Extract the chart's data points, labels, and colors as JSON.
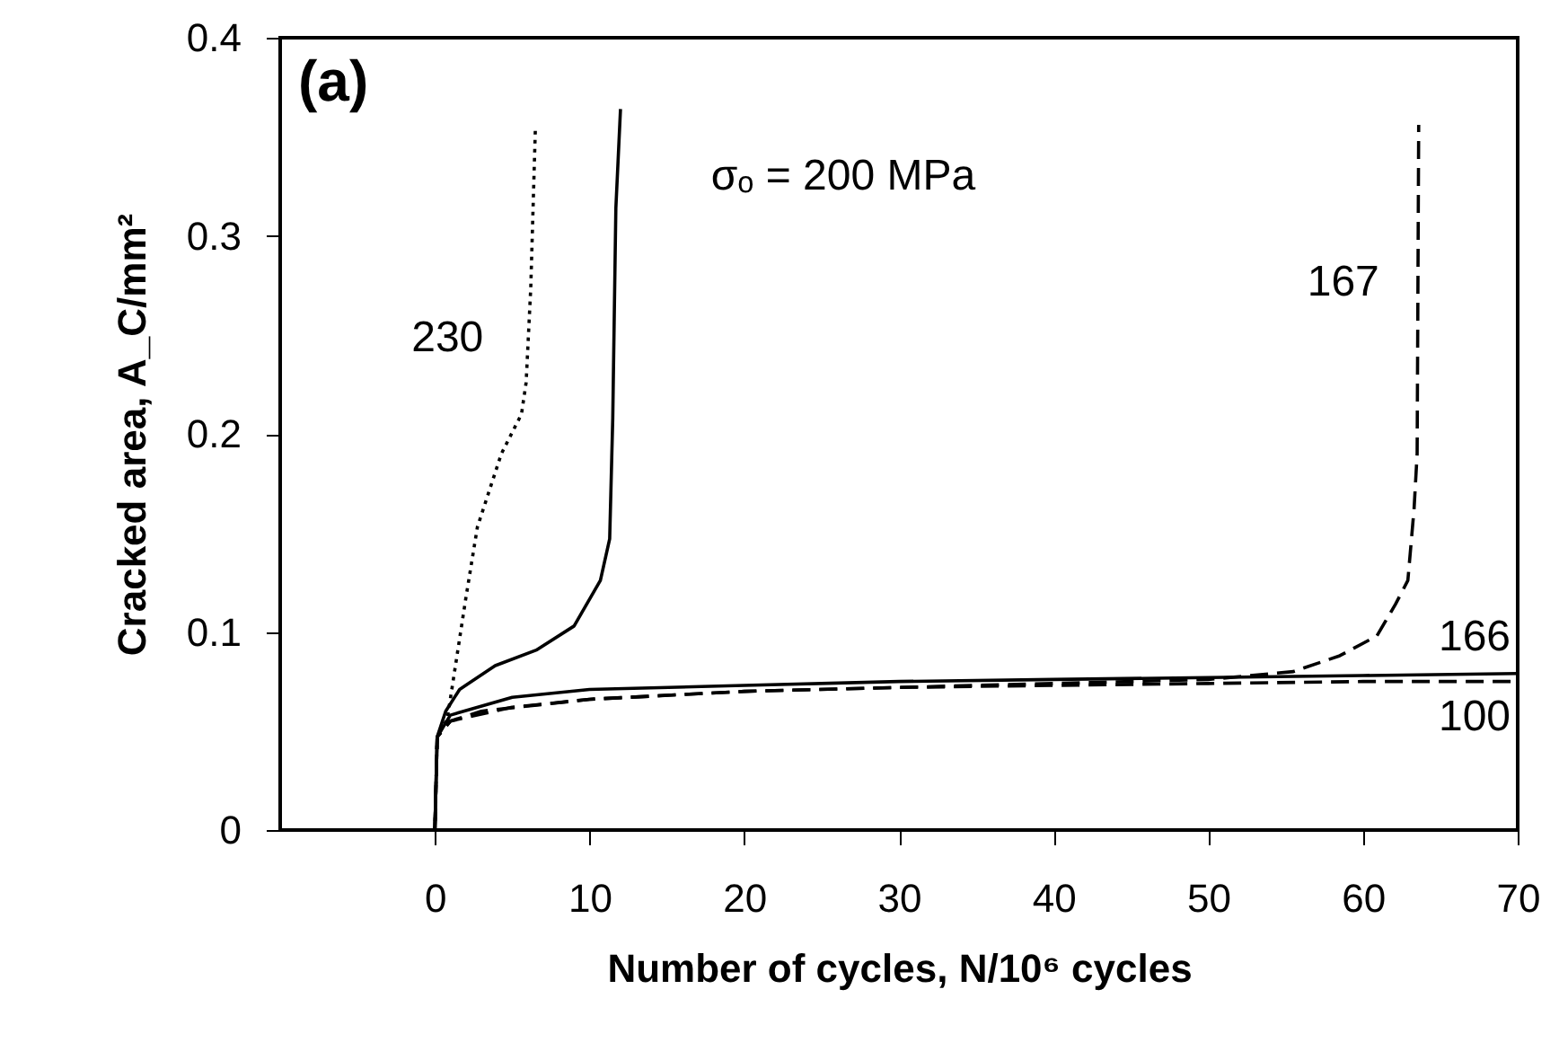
{
  "chart_data": {
    "type": "line",
    "xlabel": "Number of cycles, N/10⁶ cycles",
    "ylabel": "Cracked area, A_C/mm²",
    "xlim": [
      -10,
      70
    ],
    "xticks": [
      0,
      10,
      20,
      30,
      40,
      50,
      60,
      70
    ],
    "ylim": [
      0,
      0.4
    ],
    "yticks": [
      0,
      0.1,
      0.2,
      0.3,
      0.4
    ],
    "grid": false,
    "marker": "none",
    "series": [
      {
        "name": "230",
        "color": "#000000",
        "line_style": "dotted",
        "x": [
          0,
          0.15,
          0.8,
          2.0,
          2.75,
          4.3,
          5.6,
          5.9,
          6.2,
          6.5
        ],
        "values": [
          0,
          0.047,
          0.056,
          0.117,
          0.153,
          0.19,
          0.21,
          0.226,
          0.274,
          0.355
        ]
      },
      {
        "name": "σₒ = 200 MPa",
        "color": "#000000",
        "line_style": "solid",
        "x": [
          0,
          0.15,
          0.7,
          1.6,
          3.9,
          6.6,
          9.0,
          10.7,
          11.3,
          11.5,
          11.7,
          12.0
        ],
        "values": [
          0,
          0.047,
          0.06,
          0.071,
          0.083,
          0.091,
          0.103,
          0.126,
          0.147,
          0.208,
          0.314,
          0.364
        ]
      },
      {
        "name": "167",
        "color": "#000000",
        "line_style": "dashed",
        "x": [
          0,
          0.15,
          1,
          5,
          10,
          20,
          30,
          40,
          50,
          55.5,
          58.5,
          60.9,
          62.1,
          62.9,
          63.3,
          63.5,
          63.6
        ],
        "values": [
          0,
          0.047,
          0.055,
          0.062,
          0.066,
          0.07,
          0.072,
          0.074,
          0.076,
          0.08,
          0.088,
          0.098,
          0.114,
          0.126,
          0.162,
          0.19,
          0.356
        ]
      },
      {
        "name": "166",
        "color": "#000000",
        "line_style": "solid",
        "x": [
          0,
          0.15,
          1,
          5,
          10,
          20,
          30,
          40,
          50,
          60,
          70
        ],
        "values": [
          0,
          0.047,
          0.058,
          0.067,
          0.071,
          0.073,
          0.075,
          0.076,
          0.077,
          0.078,
          0.079
        ]
      },
      {
        "name": "100",
        "color": "#000000",
        "line_style": "dashed",
        "x": [
          0,
          0.15,
          1,
          3,
          10,
          20,
          30,
          40,
          50,
          60,
          70
        ],
        "values": [
          0,
          0.047,
          0.055,
          0.06,
          0.066,
          0.07,
          0.072,
          0.073,
          0.074,
          0.075,
          0.075
        ]
      }
    ],
    "annotations": [
      "(a)"
    ]
  }
}
